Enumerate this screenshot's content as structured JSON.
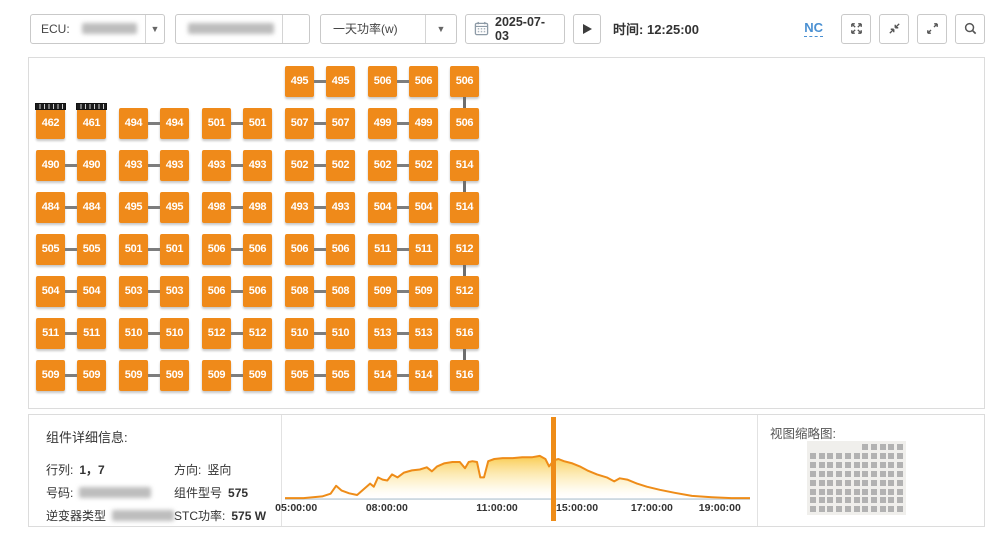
{
  "toolbar": {
    "ecu_label": "ECU:",
    "ecu_value_redacted": true,
    "id_value_redacted": true,
    "metric_select_value": "一天功率(w)",
    "date_value": "2025-07-03",
    "time_label": "时间:",
    "time_value": "12:25:00",
    "nc_label": "NC"
  },
  "grid": {
    "rows": [
      [
        null,
        null,
        null,
        null,
        null,
        null,
        "495",
        "495",
        "506",
        "506",
        "506"
      ],
      [
        "462",
        "461",
        "494",
        "494",
        "501",
        "501",
        "507",
        "507",
        "499",
        "499",
        "506"
      ],
      [
        "490",
        "490",
        "493",
        "493",
        "493",
        "493",
        "502",
        "502",
        "502",
        "502",
        "514"
      ],
      [
        "484",
        "484",
        "495",
        "495",
        "498",
        "498",
        "493",
        "493",
        "504",
        "504",
        "514"
      ],
      [
        "505",
        "505",
        "501",
        "501",
        "506",
        "506",
        "506",
        "506",
        "511",
        "511",
        "512"
      ],
      [
        "504",
        "504",
        "503",
        "503",
        "506",
        "506",
        "508",
        "508",
        "509",
        "509",
        "512"
      ],
      [
        "511",
        "511",
        "510",
        "510",
        "512",
        "512",
        "510",
        "510",
        "513",
        "513",
        "516"
      ],
      [
        "509",
        "509",
        "509",
        "509",
        "509",
        "509",
        "505",
        "505",
        "514",
        "514",
        "516"
      ]
    ],
    "selected_cells": [
      [
        1,
        0
      ],
      [
        1,
        1
      ]
    ],
    "unlinked_pairs": [
      [
        1,
        0
      ]
    ],
    "vertical_links_col": 10,
    "vertical_links": [
      [
        0,
        1
      ],
      [
        2,
        3
      ],
      [
        4,
        5
      ],
      [
        6,
        7
      ]
    ]
  },
  "detail": {
    "title": "组件详细信息:",
    "rows_left": [
      {
        "label": "行列:",
        "value": "1，7",
        "redacted": false
      },
      {
        "label": "号码:",
        "value": "",
        "redacted": true
      },
      {
        "label": "逆变器类型",
        "value": "",
        "redacted": true
      }
    ],
    "rows_right": [
      {
        "label": "方向:",
        "value": "竖向"
      },
      {
        "label": "组件型号",
        "value": "575"
      },
      {
        "label": "STC功率:",
        "value": "575 W"
      }
    ]
  },
  "chart_data": {
    "type": "area",
    "title": "一天功率(w)",
    "y_axis_visible": false,
    "grid": false,
    "x_tick_labels": [
      "05:00:00",
      "08:00:00",
      "11:00:00",
      "15:00:00",
      "17:00:00",
      "19:00:00"
    ],
    "x_tick_positions": [
      0.024,
      0.219,
      0.456,
      0.628,
      0.789,
      0.935
    ],
    "marker_position": 0.578,
    "ylim_relative": [
      0,
      1
    ],
    "points": [
      [
        0.0,
        0.02
      ],
      [
        0.04,
        0.02
      ],
      [
        0.08,
        0.06
      ],
      [
        0.098,
        0.12
      ],
      [
        0.11,
        0.3
      ],
      [
        0.122,
        0.19
      ],
      [
        0.138,
        0.13
      ],
      [
        0.155,
        0.09
      ],
      [
        0.17,
        0.23
      ],
      [
        0.183,
        0.35
      ],
      [
        0.191,
        0.28
      ],
      [
        0.2,
        0.49
      ],
      [
        0.21,
        0.44
      ],
      [
        0.22,
        0.42
      ],
      [
        0.23,
        0.56
      ],
      [
        0.242,
        0.49
      ],
      [
        0.256,
        0.6
      ],
      [
        0.273,
        0.65
      ],
      [
        0.29,
        0.67
      ],
      [
        0.305,
        0.72
      ],
      [
        0.316,
        0.63
      ],
      [
        0.327,
        0.74
      ],
      [
        0.342,
        0.81
      ],
      [
        0.36,
        0.84
      ],
      [
        0.376,
        0.84
      ],
      [
        0.387,
        0.7
      ],
      [
        0.395,
        0.84
      ],
      [
        0.403,
        0.86
      ],
      [
        0.413,
        0.84
      ],
      [
        0.42,
        0.49
      ],
      [
        0.428,
        0.49
      ],
      [
        0.437,
        0.86
      ],
      [
        0.45,
        0.91
      ],
      [
        0.468,
        0.93
      ],
      [
        0.49,
        0.93
      ],
      [
        0.51,
        0.95
      ],
      [
        0.532,
        0.95
      ],
      [
        0.548,
        0.98
      ],
      [
        0.56,
        0.91
      ],
      [
        0.568,
        0.74
      ],
      [
        0.578,
        0.88
      ],
      [
        0.588,
        0.91
      ],
      [
        0.6,
        0.86
      ],
      [
        0.618,
        0.81
      ],
      [
        0.634,
        0.74
      ],
      [
        0.65,
        0.65
      ],
      [
        0.671,
        0.56
      ],
      [
        0.692,
        0.49
      ],
      [
        0.708,
        0.4
      ],
      [
        0.72,
        0.47
      ],
      [
        0.736,
        0.44
      ],
      [
        0.757,
        0.35
      ],
      [
        0.778,
        0.28
      ],
      [
        0.806,
        0.21
      ],
      [
        0.838,
        0.14
      ],
      [
        0.875,
        0.07
      ],
      [
        0.918,
        0.04
      ],
      [
        0.96,
        0.02
      ],
      [
        1.0,
        0.02
      ]
    ]
  },
  "thumbnail": {
    "label": "视图缩略图:",
    "rows": 8,
    "cols": 11,
    "partial_first_row_start_col": 6
  },
  "colors": {
    "panel_orange": "#ef8a1a",
    "connector_gray": "#7d7d7d",
    "line_orange": "#ee8c18",
    "fill_yellow": "#f9c846",
    "axis_line": "#cdd9e1",
    "link_blue": "#4a90d2"
  }
}
